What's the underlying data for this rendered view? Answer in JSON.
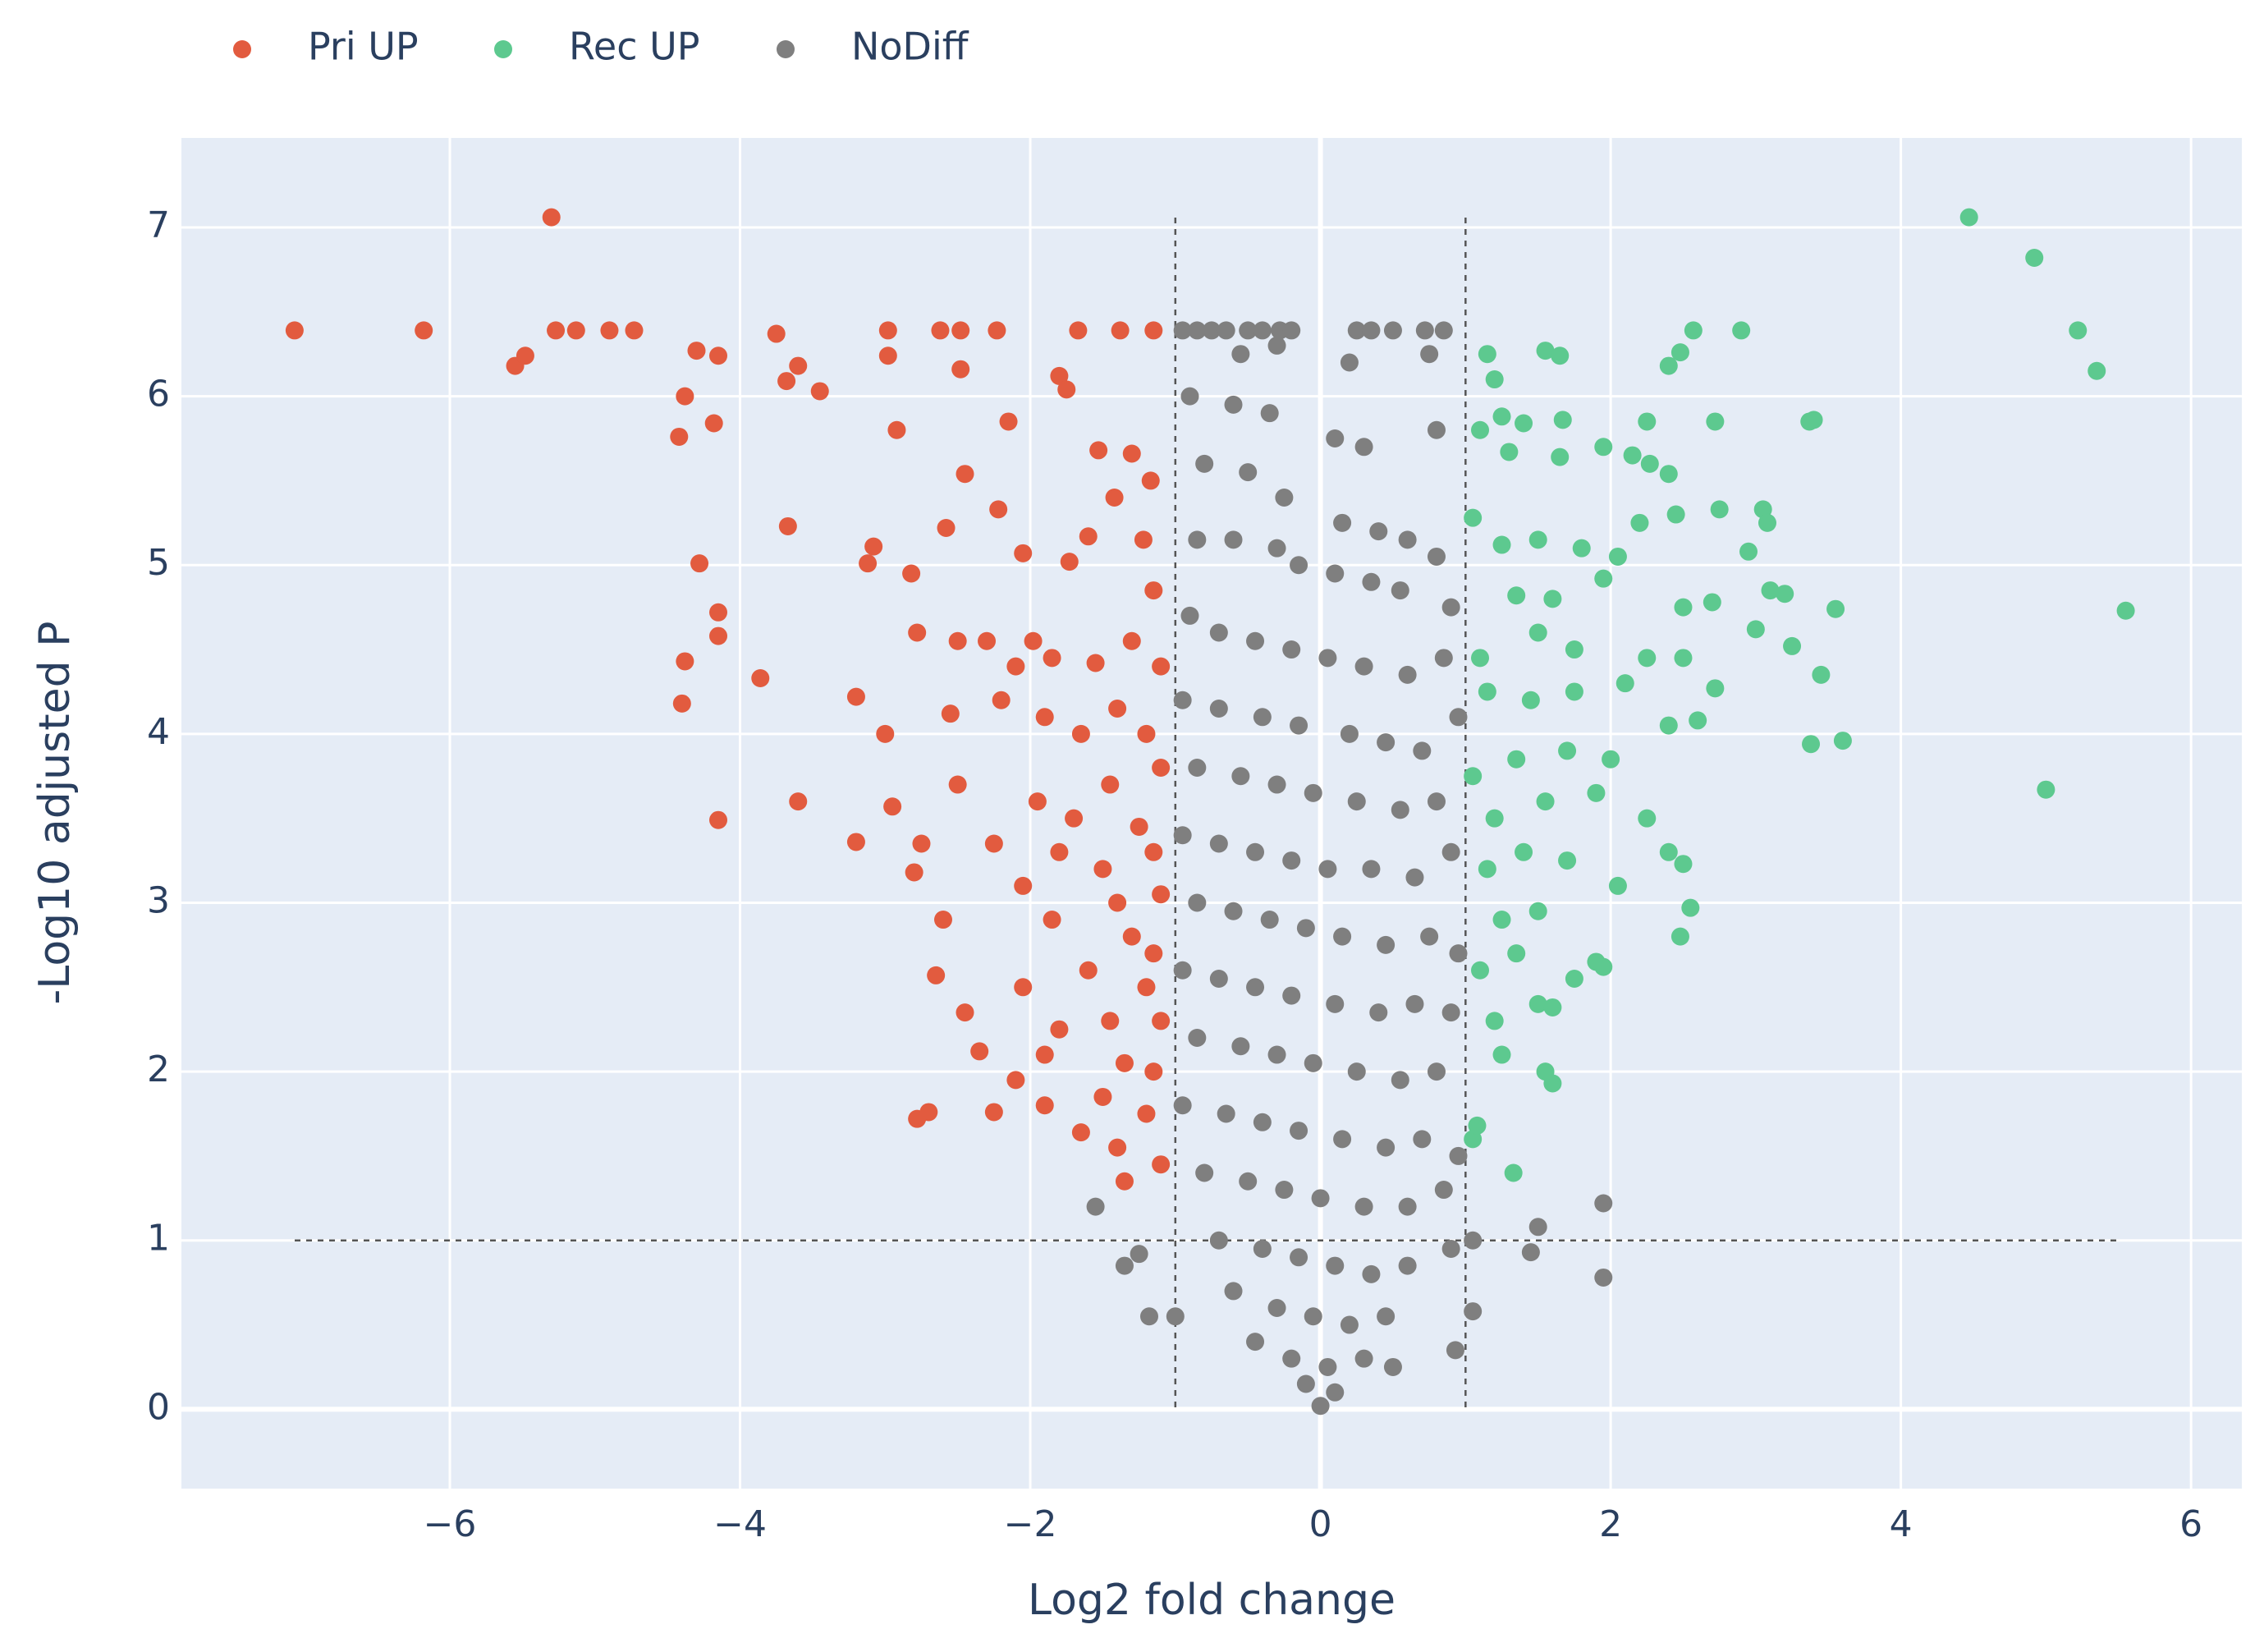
{
  "chart_data": {
    "type": "scatter",
    "x_label": "Log2 fold change",
    "y_label": "-Log10 adjusted P",
    "xlim": [
      -7.85,
      6.35
    ],
    "ylim": [
      -0.47,
      7.53
    ],
    "xticks": [
      {
        "value": -6,
        "label": "−6"
      },
      {
        "value": -4,
        "label": "−4"
      },
      {
        "value": -2,
        "label": "−2"
      },
      0,
      2,
      4,
      6
    ],
    "yticks": [
      0,
      1,
      2,
      3,
      4,
      5,
      6,
      7
    ],
    "grid": true,
    "background": "#e5ecf6",
    "legend_position": "top-left",
    "x_thresholds": [
      -1,
      1
    ],
    "y_threshold": 1,
    "series": [
      {
        "name": "Pri UP",
        "color": "#e25b3f",
        "x": [
          -7.07,
          -6.18,
          -5.3,
          -5.55,
          -5.48,
          -5.27,
          -5.13,
          -4.9,
          -4.73,
          -4.3,
          -4.15,
          -4.38,
          -4.18,
          -4.42,
          -3.75,
          -3.68,
          -3.6,
          -3.45,
          -2.98,
          -2.98,
          -2.62,
          -2.48,
          -2.48,
          -2.23,
          -1.67,
          -1.38,
          -1.15,
          -1.8,
          -1.75,
          -2.15,
          -2.92,
          -2.45,
          -1.53,
          -1.3,
          -1.17,
          -4.28,
          -3.67,
          -3.08,
          -3.12,
          -2.58,
          -2.22,
          -1.42,
          -1.6,
          -1.73,
          -1.22,
          -2.05,
          -2.82,
          -4.15,
          -4.15,
          -4.38,
          -4.4,
          -3.86,
          -3.2,
          -2.78,
          -2.5,
          -2.3,
          -2.1,
          -1.98,
          -1.85,
          -1.55,
          -1.3,
          -1.15,
          -1.1,
          -3.0,
          -2.55,
          -2.2,
          -1.9,
          -1.65,
          -1.4,
          -1.2,
          -1.1,
          -3.6,
          -2.95,
          -2.5,
          -1.95,
          -1.7,
          -1.45,
          -1.25,
          -4.15,
          -3.2,
          -2.75,
          -2.25,
          -1.8,
          -1.5,
          -1.15,
          -2.8,
          -2.05,
          -1.4,
          -1.1,
          -2.6,
          -1.85,
          -1.3,
          -1.15,
          -2.65,
          -2.05,
          -1.6,
          -1.2,
          -2.45,
          -1.8,
          -1.45,
          -1.1,
          -2.35,
          -1.9,
          -1.35,
          -1.15,
          -2.1,
          -1.9,
          -1.5,
          -1.2,
          -2.78,
          -2.7,
          -2.25,
          -1.65,
          -1.4,
          -1.35,
          -1.1
        ],
        "values": [
          6.39,
          6.39,
          7.06,
          6.18,
          6.24,
          6.39,
          6.39,
          6.39,
          6.39,
          6.27,
          6.24,
          6.0,
          5.84,
          5.76,
          6.37,
          6.09,
          6.18,
          6.03,
          6.39,
          6.24,
          6.39,
          6.39,
          6.16,
          6.39,
          6.39,
          6.39,
          6.39,
          6.12,
          6.04,
          5.85,
          5.8,
          5.54,
          5.68,
          5.66,
          5.5,
          5.01,
          5.23,
          5.11,
          5.01,
          5.22,
          5.33,
          5.4,
          5.17,
          5.02,
          5.15,
          5.07,
          4.95,
          4.72,
          4.58,
          4.43,
          4.18,
          4.33,
          4.22,
          4.6,
          4.55,
          4.55,
          4.4,
          4.55,
          4.45,
          4.42,
          4.55,
          4.85,
          4.4,
          4.0,
          4.12,
          4.2,
          4.1,
          4.0,
          4.15,
          4.0,
          3.8,
          3.6,
          3.57,
          3.7,
          3.6,
          3.5,
          3.7,
          3.45,
          3.49,
          3.36,
          3.35,
          3.35,
          3.3,
          3.2,
          3.3,
          3.18,
          3.1,
          3.0,
          3.05,
          2.9,
          2.9,
          2.8,
          2.7,
          2.57,
          2.5,
          2.6,
          2.5,
          2.35,
          2.25,
          2.3,
          2.3,
          2.12,
          2.1,
          2.05,
          2.0,
          1.95,
          1.8,
          1.85,
          1.75,
          1.72,
          1.76,
          1.76,
          1.64,
          1.55,
          1.35,
          1.45
        ]
      },
      {
        "name": "Rec UP",
        "color": "#5dc98f",
        "x": [
          4.47,
          4.92,
          5.22,
          5.35,
          5.55,
          5.0,
          2.9,
          2.57,
          2.48,
          2.4,
          1.55,
          1.65,
          1.15,
          1.2,
          1.25,
          1.1,
          1.4,
          1.67,
          2.25,
          2.72,
          3.37,
          3.4,
          1.3,
          1.65,
          1.95,
          2.15,
          2.27,
          2.4,
          1.05,
          1.25,
          1.5,
          1.8,
          2.05,
          2.2,
          2.45,
          2.75,
          3.05,
          3.08,
          2.95,
          1.35,
          1.6,
          1.95,
          2.5,
          2.7,
          3.1,
          3.2,
          3.55,
          1.1,
          1.5,
          1.75,
          2.25,
          3.0,
          3.25,
          3.45,
          1.15,
          1.45,
          1.75,
          2.1,
          2.5,
          2.72,
          1.05,
          1.35,
          1.7,
          2.0,
          2.4,
          2.6,
          3.38,
          3.6,
          1.2,
          1.55,
          1.9,
          2.25,
          1.15,
          1.4,
          1.7,
          2.05,
          2.4,
          2.5,
          1.25,
          1.5,
          2.55,
          2.48,
          1.1,
          1.35,
          1.75,
          1.9,
          1.95,
          1.2,
          1.5,
          1.6,
          1.25,
          1.55,
          1.6,
          1.05,
          1.08,
          1.33
        ],
        "values": [
          7.06,
          6.82,
          6.39,
          6.15,
          4.73,
          3.67,
          6.39,
          6.39,
          6.26,
          6.18,
          6.27,
          6.24,
          6.25,
          6.1,
          5.88,
          5.8,
          5.84,
          5.86,
          5.85,
          5.85,
          5.85,
          5.86,
          5.67,
          5.64,
          5.7,
          5.65,
          5.6,
          5.54,
          5.28,
          5.12,
          5.15,
          5.1,
          5.05,
          5.25,
          5.3,
          5.33,
          5.33,
          5.25,
          5.08,
          4.82,
          4.8,
          4.92,
          4.75,
          4.78,
          4.85,
          4.83,
          4.74,
          4.45,
          4.6,
          4.5,
          4.45,
          4.62,
          4.52,
          4.35,
          4.25,
          4.2,
          4.25,
          4.3,
          4.45,
          4.27,
          3.75,
          3.85,
          3.9,
          3.85,
          4.05,
          4.08,
          3.94,
          3.96,
          3.5,
          3.6,
          3.65,
          3.5,
          3.2,
          3.3,
          3.25,
          3.1,
          3.3,
          3.23,
          2.9,
          2.95,
          2.97,
          2.8,
          2.6,
          2.7,
          2.55,
          2.65,
          2.62,
          2.3,
          2.4,
          2.38,
          2.1,
          2.0,
          1.93,
          1.6,
          1.68,
          1.4
        ]
      },
      {
        "name": "NoDiff",
        "color": "#7f7f7f",
        "x": [
          -0.95,
          -0.85,
          -0.75,
          -0.65,
          -0.5,
          -0.4,
          -0.28,
          -0.2,
          0.25,
          0.35,
          0.5,
          0.72,
          0.85,
          -0.3,
          -0.55,
          0.2,
          0.75,
          -0.9,
          -0.6,
          -0.35,
          0.1,
          0.3,
          0.8,
          -0.8,
          -0.5,
          -0.25,
          0.15,
          0.4,
          0.6,
          0.8,
          -0.85,
          -0.6,
          -0.3,
          -0.15,
          0.1,
          0.35,
          0.55,
          0.9,
          -0.9,
          -0.7,
          -0.45,
          -0.2,
          0.05,
          0.3,
          0.6,
          0.85,
          -0.95,
          -0.7,
          -0.4,
          -0.15,
          0.2,
          0.45,
          0.7,
          0.95,
          -0.85,
          -0.55,
          -0.3,
          -0.05,
          0.25,
          0.55,
          0.8,
          -0.95,
          -0.7,
          -0.45,
          -0.2,
          0.05,
          0.35,
          0.65,
          0.9,
          -0.85,
          -0.6,
          -0.35,
          -0.1,
          0.15,
          0.45,
          0.75,
          0.95,
          -0.95,
          -0.7,
          -0.45,
          -0.2,
          0.1,
          0.4,
          0.65,
          0.9,
          -0.85,
          -0.55,
          -0.3,
          -0.05,
          0.25,
          0.55,
          0.8,
          -0.95,
          -0.65,
          -0.4,
          -0.15,
          0.15,
          0.45,
          0.7,
          0.95,
          -0.8,
          -0.5,
          -0.25,
          0.0,
          0.3,
          0.6,
          0.85,
          -0.7,
          -0.4,
          -0.15,
          0.1,
          0.35,
          0.6,
          0.9,
          -0.6,
          -0.3,
          -0.05,
          0.2,
          0.45,
          -0.45,
          -0.2,
          0.05,
          0.3,
          -0.1,
          0.1,
          0.0,
          -1.55,
          -1.35,
          -1.25,
          -1.18,
          -1.0,
          1.05,
          1.05,
          1.5,
          1.45,
          1.95,
          1.95,
          0.93,
          0.5
        ],
        "values": [
          6.39,
          6.39,
          6.39,
          6.39,
          6.39,
          6.39,
          6.39,
          6.39,
          6.39,
          6.39,
          6.39,
          6.39,
          6.39,
          6.3,
          6.25,
          6.2,
          6.25,
          6.0,
          5.95,
          5.9,
          5.75,
          5.7,
          5.8,
          5.6,
          5.55,
          5.4,
          5.25,
          5.2,
          5.15,
          5.05,
          5.15,
          5.15,
          5.1,
          5.0,
          4.95,
          4.9,
          4.85,
          4.75,
          4.7,
          4.6,
          4.55,
          4.5,
          4.45,
          4.4,
          4.35,
          4.45,
          4.2,
          4.15,
          4.1,
          4.05,
          4.0,
          3.95,
          3.9,
          4.1,
          3.8,
          3.75,
          3.7,
          3.65,
          3.6,
          3.55,
          3.6,
          3.4,
          3.35,
          3.3,
          3.25,
          3.2,
          3.2,
          3.15,
          3.3,
          3.0,
          2.95,
          2.9,
          2.85,
          2.8,
          2.75,
          2.8,
          2.7,
          2.6,
          2.55,
          2.5,
          2.45,
          2.4,
          2.35,
          2.4,
          2.35,
          2.2,
          2.15,
          2.1,
          2.05,
          2.0,
          1.95,
          2.0,
          1.8,
          1.75,
          1.7,
          1.65,
          1.6,
          1.55,
          1.6,
          1.5,
          1.4,
          1.35,
          1.3,
          1.25,
          1.2,
          1.2,
          1.3,
          1.0,
          0.95,
          0.9,
          0.85,
          0.8,
          0.85,
          0.95,
          0.7,
          0.6,
          0.55,
          0.5,
          0.55,
          0.4,
          0.3,
          0.25,
          0.3,
          0.15,
          0.1,
          0.02,
          1.2,
          0.85,
          0.92,
          0.55,
          0.55,
          0.58,
          1.0,
          1.08,
          0.93,
          1.22,
          0.78,
          0.35,
          0.25
        ]
      }
    ]
  }
}
